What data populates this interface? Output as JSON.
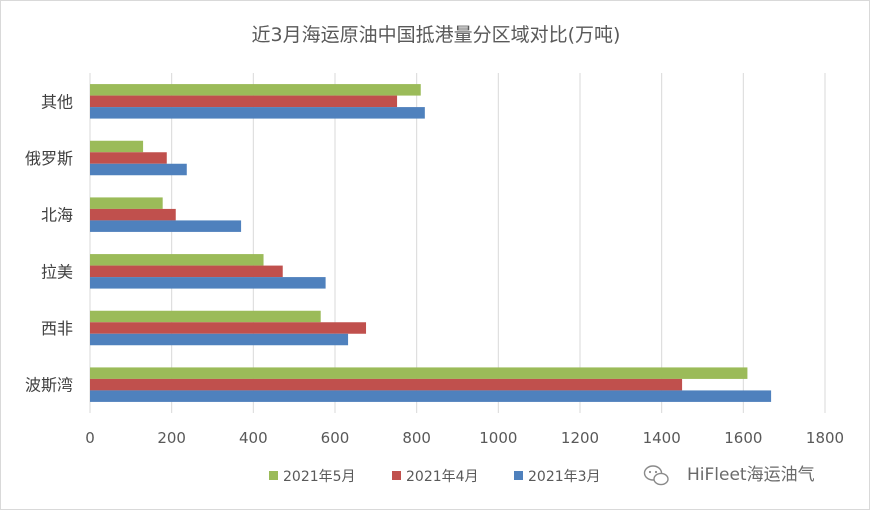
{
  "chart_data": {
    "type": "bar",
    "orientation": "horizontal",
    "title": "近3月海运原油中国抵港量分区域对比(万吨)",
    "categories": [
      "其他",
      "俄罗斯",
      "北海",
      "拉美",
      "西非",
      "波斯湾"
    ],
    "series": [
      {
        "name": "2021年5月",
        "color": "#9bbb59",
        "values": [
          810,
          130,
          178,
          425,
          565,
          1610
        ]
      },
      {
        "name": "2021年4月",
        "color": "#c0504d",
        "values": [
          752,
          188,
          210,
          472,
          676,
          1450
        ]
      },
      {
        "name": "2021年3月",
        "color": "#4f81bd",
        "values": [
          820,
          237,
          370,
          577,
          632,
          1668
        ]
      }
    ],
    "xlim": [
      0,
      1800
    ],
    "xticks": [
      "0",
      "200",
      "400",
      "600",
      "800",
      "1000",
      "1200",
      "1400",
      "1600",
      "1800"
    ],
    "grid": true,
    "legend": "bottom"
  },
  "watermark": {
    "text": "HiFleet海运油气",
    "icon": "wechat-icon"
  }
}
